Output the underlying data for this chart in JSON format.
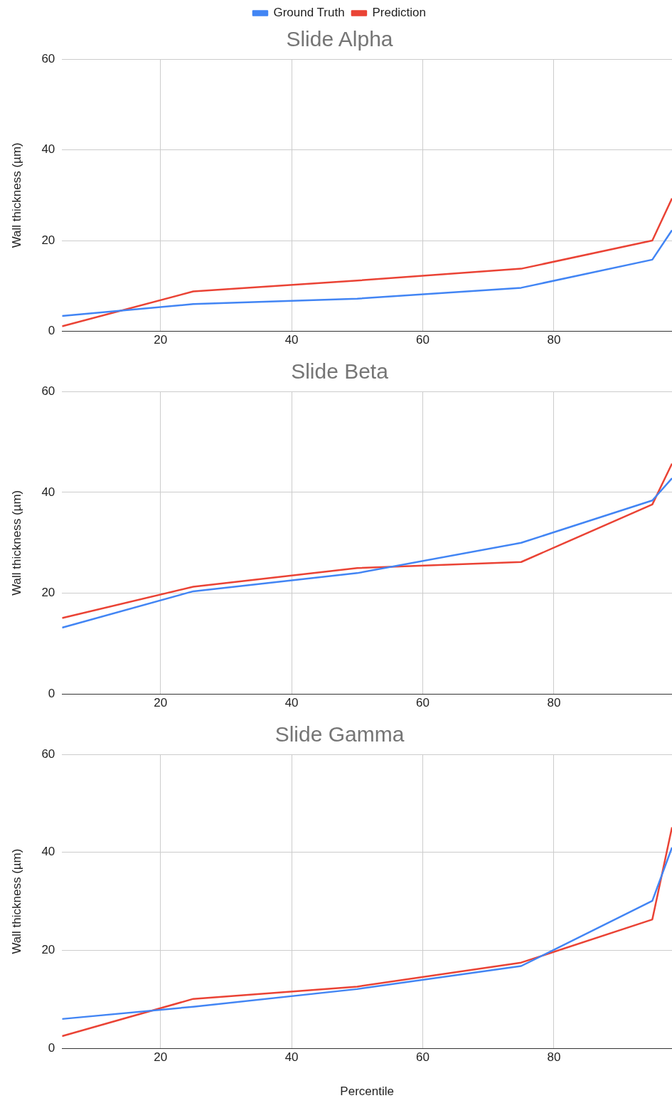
{
  "chart_data": [
    {
      "type": "line",
      "title": "Slide Alpha",
      "ylabel": "Wall thickness (µm)",
      "x": [
        5,
        25,
        50,
        75,
        95,
        98
      ],
      "xlim": [
        5,
        98
      ],
      "xticks": [
        20,
        40,
        60,
        80
      ],
      "ylim": [
        0,
        60
      ],
      "yticks": [
        0,
        20,
        40,
        60
      ],
      "grid": true,
      "legend": "top",
      "marker": "none",
      "series": [
        {
          "name": "Ground Truth",
          "color": "#4285f4",
          "values": [
            3.4,
            6.0,
            7.2,
            9.6,
            15.8,
            22.3
          ]
        },
        {
          "name": "Prediction",
          "color": "#ea4335",
          "values": [
            1.1,
            8.8,
            11.2,
            13.8,
            20.0,
            29.3
          ]
        }
      ]
    },
    {
      "type": "line",
      "title": "Slide Beta",
      "ylabel": "Wall thickness (µm)",
      "x": [
        5,
        25,
        50,
        75,
        95,
        98
      ],
      "xlim": [
        5,
        98
      ],
      "xticks": [
        20,
        40,
        60,
        80
      ],
      "ylim": [
        0,
        60
      ],
      "yticks": [
        0,
        20,
        40,
        60
      ],
      "grid": true,
      "legend": false,
      "marker": "none",
      "series": [
        {
          "color": "#4285f4",
          "values": [
            13.2,
            20.4,
            24.0,
            30.0,
            38.4,
            42.8
          ]
        },
        {
          "color": "#ea4335",
          "values": [
            15.1,
            21.3,
            25.0,
            26.2,
            37.6,
            45.7
          ]
        }
      ]
    },
    {
      "type": "line",
      "title": "Slide Gamma",
      "xlabel": "Percentile",
      "ylabel": "Wall thickness (µm)",
      "x": [
        5,
        25,
        50,
        75,
        95,
        98
      ],
      "xlim": [
        5,
        98
      ],
      "xticks": [
        20,
        40,
        60,
        80
      ],
      "ylim": [
        0,
        60
      ],
      "yticks": [
        0,
        20,
        40,
        60
      ],
      "grid": true,
      "legend": false,
      "marker": "none",
      "series": [
        {
          "color": "#4285f4",
          "values": [
            6.0,
            8.5,
            12.1,
            16.8,
            30.1,
            41.0
          ]
        },
        {
          "color": "#ea4335",
          "values": [
            2.5,
            10.1,
            12.6,
            17.5,
            26.3,
            45.1
          ]
        }
      ]
    }
  ]
}
